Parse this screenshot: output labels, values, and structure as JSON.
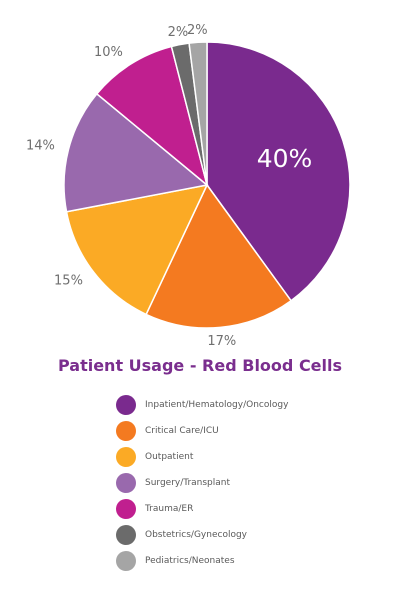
{
  "chart_data": {
    "type": "pie",
    "title": "Patient Usage - Red Blood Cells",
    "legend_position": "bottom",
    "slices": [
      {
        "name": "Inpatient/Hematology/Oncology",
        "value": 40,
        "label": "40%",
        "color": "#7a2a8e",
        "label_position": "inside"
      },
      {
        "name": "Critical Care/ICU",
        "value": 17,
        "label": "17%",
        "color": "#f47a20",
        "label_position": "outside"
      },
      {
        "name": "Outpatient",
        "value": 15,
        "label": "15%",
        "color": "#fbaa25",
        "label_position": "outside"
      },
      {
        "name": "Surgery/Transplant",
        "value": 14,
        "label": "14%",
        "color": "#9969ad",
        "label_position": "outside"
      },
      {
        "name": "Trauma/ER",
        "value": 10,
        "label": "10%",
        "color": "#c01f8f",
        "label_position": "outside"
      },
      {
        "name": "Obstetrics/Gynecology",
        "value": 2,
        "label": "2%",
        "color": "#6b6b6b",
        "label_position": "outside"
      },
      {
        "name": "Pediatrics/Neonates",
        "value": 2,
        "label": "2%",
        "color": "#a5a5a5",
        "label_position": "outside"
      }
    ]
  }
}
